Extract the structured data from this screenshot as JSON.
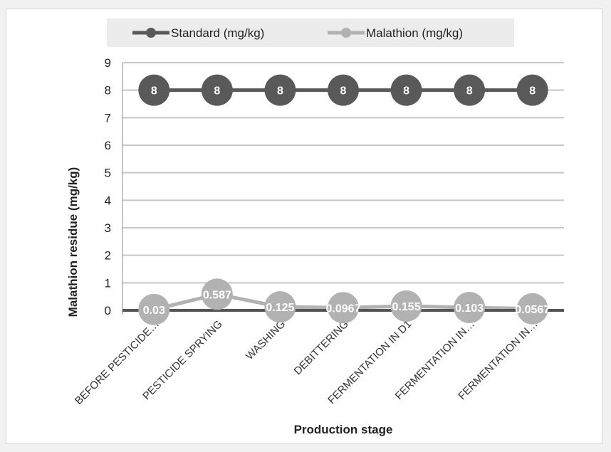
{
  "chart_data": {
    "type": "line",
    "xlabel": "Production stage",
    "ylabel": "Malathion residue (mg/kg)",
    "ylim": [
      0,
      9
    ],
    "yticks": [
      "0",
      "1",
      "2",
      "3",
      "4",
      "5",
      "6",
      "7",
      "8",
      "9"
    ],
    "categories": [
      "BEFORE PESTICIDE…",
      "PESTICIDE SPRYING",
      "WASHING",
      "DEBITTERING",
      "FERMENTATION IN D1",
      "FERMENTATION IN…",
      "FERMENTATION IN…"
    ],
    "series": [
      {
        "name": "Standard (mg/kg)",
        "color": "#595959",
        "values": [
          8,
          8,
          8,
          8,
          8,
          8,
          8
        ],
        "labels": [
          "8",
          "8",
          "8",
          "8",
          "8",
          "8",
          "8"
        ]
      },
      {
        "name": "Malathion (mg/kg)",
        "color": "#b2b2b2",
        "values": [
          0.03,
          0.587,
          0.125,
          0.0967,
          0.155,
          0.103,
          0.0567
        ],
        "labels": [
          "0.03",
          "0.587",
          "0.125",
          "0.0967",
          "0.155",
          "0.103",
          "0.0567"
        ]
      }
    ],
    "grid": true,
    "legend": "top"
  }
}
